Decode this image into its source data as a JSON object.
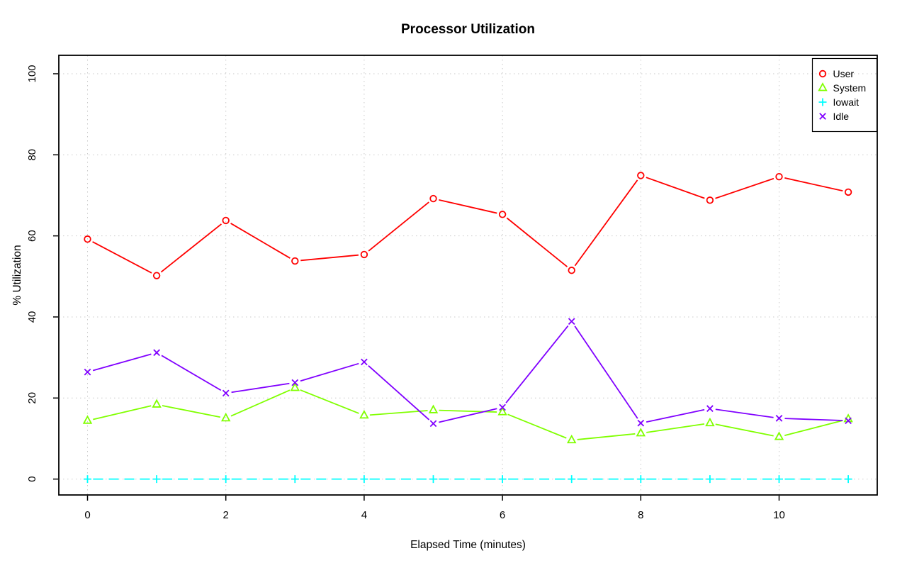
{
  "chart_data": {
    "type": "line",
    "title": "Processor Utilization",
    "xlabel": "Elapsed Time (minutes)",
    "ylabel": "% Utilization",
    "x": [
      0,
      1,
      2,
      3,
      4,
      5,
      6,
      7,
      8,
      9,
      10,
      11
    ],
    "xlim": [
      0,
      11
    ],
    "ylim": [
      0,
      100
    ],
    "xticks": [
      0,
      2,
      4,
      6,
      8,
      10
    ],
    "yticks": [
      0,
      20,
      40,
      60,
      80,
      100
    ],
    "grid": true,
    "grid_color": "#C9C9C9",
    "axis_color": "#000000",
    "background": "#FFFFFF",
    "legend": {
      "position": "top-right",
      "border": true
    },
    "series": [
      {
        "name": "User",
        "color": "#FF0000",
        "marker": "open-circle",
        "line_style": "solid",
        "values": [
          59.2,
          50.2,
          63.8,
          53.8,
          55.4,
          69.2,
          65.3,
          51.5,
          74.9,
          68.8,
          74.6,
          70.8
        ]
      },
      {
        "name": "System",
        "color": "#80FF00",
        "marker": "open-triangle",
        "line_style": "solid",
        "values": [
          14.4,
          18.4,
          15.0,
          22.5,
          15.7,
          17.0,
          16.5,
          9.6,
          11.3,
          13.8,
          10.4,
          14.8
        ]
      },
      {
        "name": "Iowait",
        "color": "#00FFFF",
        "marker": "plus",
        "line_style": "dashed",
        "values": [
          0,
          0,
          0,
          0,
          0,
          0,
          0,
          0,
          0,
          0,
          0,
          0
        ]
      },
      {
        "name": "Idle",
        "color": "#8000FF",
        "marker": "x-cross",
        "line_style": "solid",
        "values": [
          26.4,
          31.2,
          21.2,
          23.8,
          28.9,
          13.7,
          17.7,
          38.9,
          13.8,
          17.4,
          15.0,
          14.4
        ]
      }
    ]
  }
}
